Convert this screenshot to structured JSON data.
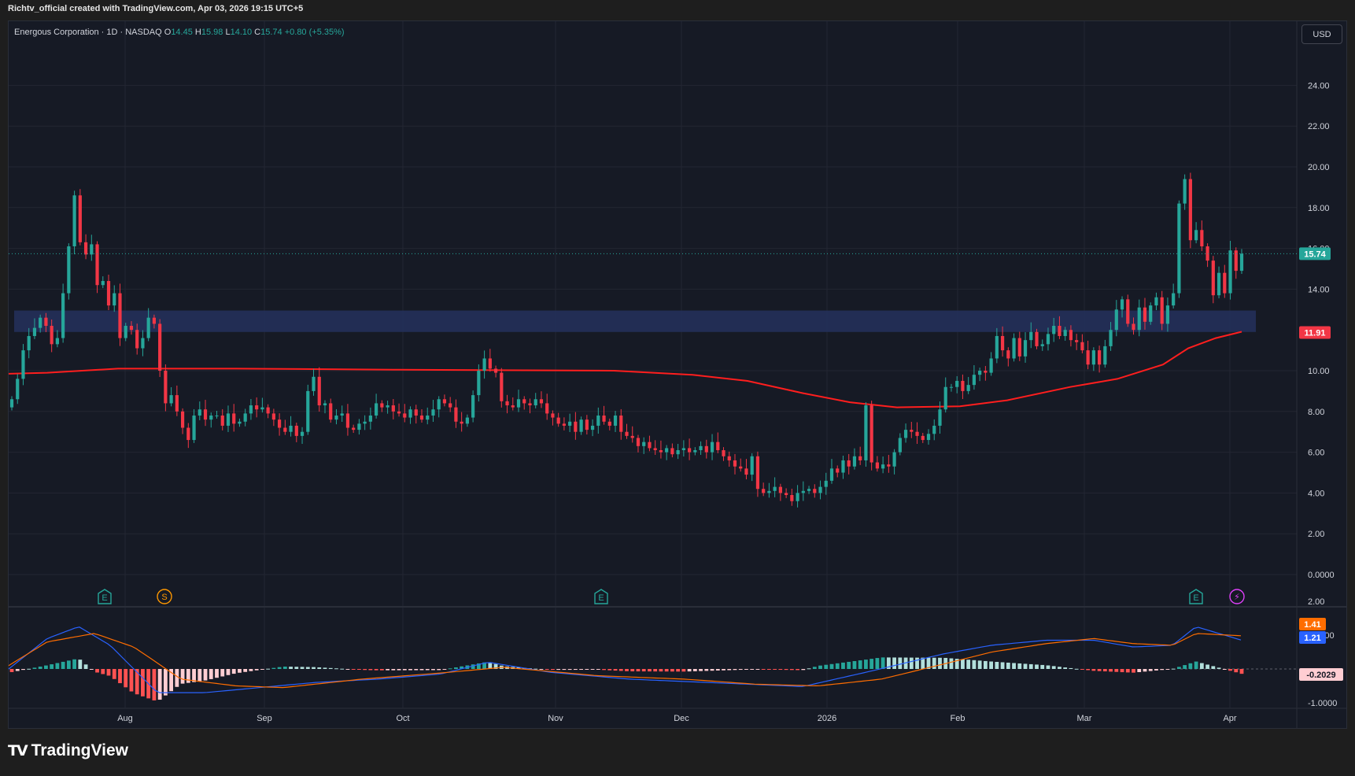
{
  "caption": "Richtv_official created with TradingView.com, Apr 03, 2026 19:15 UTC+5",
  "legend": {
    "symbol": "Energous Corporation · 1D · NASDAQ",
    "o_label": "O",
    "o": "14.45",
    "h_label": "H",
    "h": "15.98",
    "l_label": "L",
    "l": "14.10",
    "c_label": "C",
    "c": "15.74",
    "change": "+0.80 (+5.35%)"
  },
  "currency": "USD",
  "logo": {
    "mark": "TV",
    "name": "TradingView"
  },
  "colors": {
    "up": "#26a69a",
    "down": "#f23645",
    "ma": "#ff1e1e",
    "macd": "#2962ff",
    "signal": "#ff6d00",
    "zone": "#24305a",
    "bg": "#161a25"
  },
  "chart_data": [
    {
      "type": "candlestick",
      "title": "Energous Corporation · 1D · NASDAQ",
      "x_ticks": [
        "Aug",
        "Sep",
        "Oct",
        "Nov",
        "Dec",
        "2026",
        "Feb",
        "Mar",
        "Apr"
      ],
      "y_ticks": [
        "24.00",
        "22.00",
        "20.00",
        "18.00",
        "16.00",
        "14.00",
        "10.00",
        "8.00",
        "6.00",
        "4.00",
        "2.00",
        "0.0000"
      ],
      "ylim": [
        -1.5,
        27
      ],
      "price_labels": {
        "last": "15.74",
        "moving_average": "11.91"
      },
      "zone": {
        "low": 11.9,
        "high": 12.95
      },
      "events": [
        {
          "label": "E",
          "kind": "earnings",
          "date": "Jul 27"
        },
        {
          "label": "S",
          "kind": "split",
          "date": "Aug 11"
        },
        {
          "label": "E",
          "kind": "earnings",
          "date": "Nov 13"
        },
        {
          "label": "E",
          "kind": "earnings",
          "date": "Mar 23"
        },
        {
          "label": "⚡",
          "kind": "event",
          "date": "Apr 03"
        }
      ],
      "candles_close": [
        8.6,
        9.6,
        11.0,
        11.7,
        12.1,
        12.6,
        12.2,
        11.3,
        11.6,
        13.8,
        16.1,
        18.6,
        16.3,
        15.7,
        16.2,
        14.2,
        14.4,
        13.2,
        13.8,
        11.6,
        12.2,
        12.0,
        11.1,
        11.6,
        12.6,
        12.3,
        10.0,
        8.4,
        8.8,
        8.0,
        7.2,
        6.6,
        7.8,
        8.1,
        7.6,
        7.8,
        7.8,
        7.3,
        7.9,
        7.4,
        7.5,
        7.9,
        8.3,
        8.1,
        8.2,
        7.9,
        7.6,
        7.2,
        7.0,
        7.3,
        6.8,
        7.0,
        9.0,
        9.7,
        8.3,
        8.4,
        7.6,
        7.8,
        7.9,
        7.2,
        7.1,
        7.4,
        7.5,
        7.8,
        8.4,
        8.2,
        8.3,
        8.0,
        7.9,
        7.7,
        8.1,
        7.8,
        7.6,
        7.8,
        8.1,
        8.6,
        8.4,
        8.2,
        7.5,
        7.4,
        7.7,
        8.8,
        10.0,
        10.6,
        10.1,
        9.9,
        8.5,
        8.3,
        8.2,
        8.6,
        8.4,
        8.3,
        8.6,
        8.4,
        7.9,
        7.7,
        7.4,
        7.3,
        7.5,
        7.0,
        7.6,
        7.1,
        7.3,
        7.8,
        7.5,
        7.3,
        7.8,
        7.0,
        6.8,
        6.7,
        6.3,
        6.5,
        6.2,
        6.1,
        6.0,
        6.2,
        5.9,
        6.1,
        6.2,
        6.0,
        6.1,
        6.3,
        6.0,
        6.5,
        6.1,
        5.8,
        5.6,
        5.3,
        5.2,
        4.9,
        5.8,
        4.2,
        4.0,
        4.1,
        4.3,
        4.0,
        3.9,
        3.6,
        4.0,
        4.1,
        4.2,
        4.0,
        4.3,
        4.6,
        5.2,
        5.0,
        5.6,
        5.3,
        5.8,
        5.6,
        8.3,
        5.5,
        5.2,
        5.4,
        5.3,
        6.0,
        6.7,
        7.1,
        7.0,
        6.8,
        6.6,
        6.9,
        7.3,
        8.1,
        9.2,
        9.2,
        9.5,
        9.0,
        9.3,
        9.8,
        10.0,
        9.9,
        10.6,
        11.7,
        11.0,
        10.6,
        11.6,
        10.7,
        11.5,
        11.9,
        11.2,
        11.3,
        11.8,
        12.2,
        11.7,
        12.0,
        11.5,
        11.4,
        11.0,
        10.3,
        11.0,
        10.3,
        11.2,
        12.0,
        13.0,
        13.5,
        12.3,
        12.0,
        13.1,
        12.4,
        13.2,
        13.6,
        12.3,
        13.2,
        13.8,
        18.2,
        19.4,
        16.4,
        16.9,
        16.1,
        15.4,
        13.7,
        14.8,
        13.8,
        15.9,
        14.9,
        15.74
      ],
      "moving_average_label": "11.91"
    },
    {
      "type": "macd",
      "y_ticks": [
        "2.00",
        "1.0000",
        "-1.0000"
      ],
      "labels": {
        "signal": "1.41",
        "macd": "1.21",
        "histogram": "-0.2029"
      },
      "ylim": [
        -1.6,
        2.4
      ]
    }
  ]
}
